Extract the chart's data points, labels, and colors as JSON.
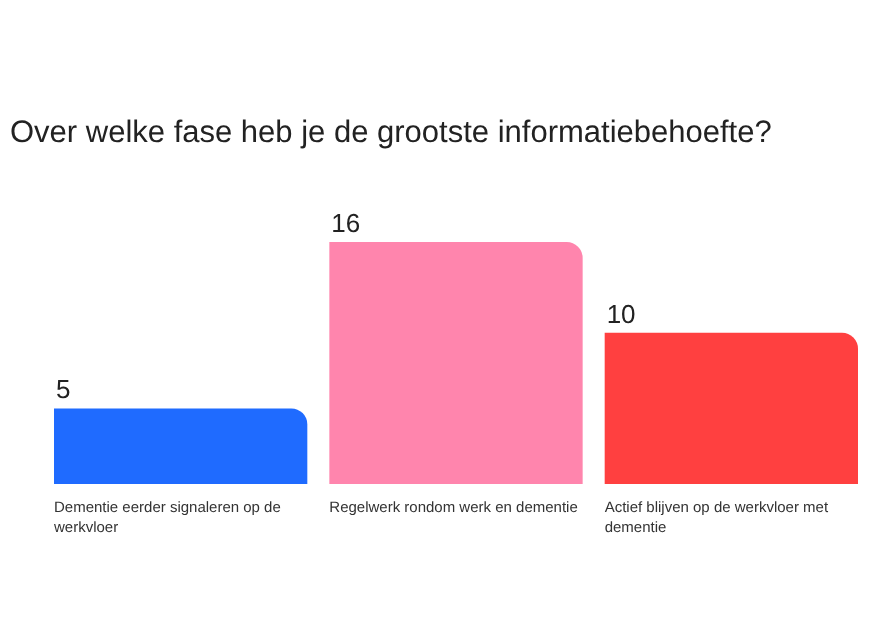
{
  "chart_data": {
    "type": "bar",
    "title": "Over welke fase heb je de grootste informatiebehoefte?",
    "categories": [
      "Dementie eerder signaleren op de werkvloer",
      "Regelwerk rondom werk en dementie",
      "Actief blijven op de werkvloer met dementie"
    ],
    "values": [
      5,
      16,
      10
    ],
    "colors": [
      "#1f6bff",
      "#ff85ad",
      "#ff4040"
    ],
    "data_labels": true
  }
}
